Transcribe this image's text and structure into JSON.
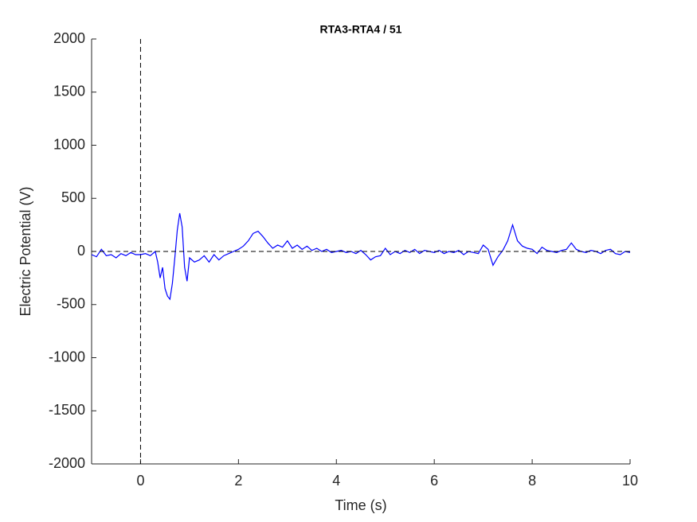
{
  "chart_data": {
    "type": "line",
    "title": "RTA3-RTA4 / 51",
    "xlabel": "Time (s)",
    "ylabel": "Electric Potential (V)",
    "x": [
      -1,
      -0.9,
      -0.8,
      -0.7,
      -0.6,
      -0.5,
      -0.4,
      -0.3,
      -0.2,
      -0.1,
      0,
      0.1,
      0.2,
      0.3,
      0.35,
      0.4,
      0.45,
      0.5,
      0.55,
      0.6,
      0.65,
      0.7,
      0.75,
      0.8,
      0.85,
      0.9,
      0.95,
      1.0,
      1.1,
      1.2,
      1.3,
      1.4,
      1.5,
      1.6,
      1.7,
      1.8,
      1.9,
      2.0,
      2.1,
      2.2,
      2.3,
      2.4,
      2.5,
      2.6,
      2.7,
      2.8,
      2.9,
      3.0,
      3.1,
      3.2,
      3.3,
      3.4,
      3.5,
      3.6,
      3.7,
      3.8,
      3.9,
      4.0,
      4.1,
      4.2,
      4.3,
      4.4,
      4.5,
      4.6,
      4.7,
      4.8,
      4.9,
      5.0,
      5.1,
      5.2,
      5.3,
      5.4,
      5.5,
      5.6,
      5.7,
      5.8,
      5.9,
      6.0,
      6.1,
      6.2,
      6.3,
      6.4,
      6.5,
      6.6,
      6.7,
      6.8,
      6.9,
      7.0,
      7.1,
      7.2,
      7.3,
      7.4,
      7.5,
      7.6,
      7.7,
      7.8,
      7.9,
      8.0,
      8.1,
      8.2,
      8.3,
      8.4,
      8.5,
      8.6,
      8.7,
      8.8,
      8.9,
      9.0,
      9.1,
      9.2,
      9.3,
      9.4,
      9.5,
      9.6,
      9.7,
      9.8,
      9.9,
      10
    ],
    "series": [
      {
        "color": "#0000ff",
        "values": [
          -30,
          -50,
          20,
          -40,
          -30,
          -60,
          -20,
          -40,
          -10,
          -30,
          -30,
          -20,
          -40,
          0,
          -100,
          -250,
          -150,
          -350,
          -420,
          -450,
          -300,
          -60,
          200,
          360,
          230,
          -150,
          -280,
          -60,
          -100,
          -80,
          -40,
          -100,
          -30,
          -80,
          -40,
          -20,
          0,
          20,
          50,
          100,
          170,
          190,
          140,
          80,
          30,
          60,
          40,
          100,
          30,
          60,
          20,
          50,
          10,
          30,
          0,
          20,
          -10,
          0,
          10,
          -10,
          0,
          -20,
          10,
          -30,
          -80,
          -50,
          -40,
          30,
          -30,
          0,
          -20,
          10,
          -10,
          20,
          -20,
          10,
          0,
          -10,
          10,
          -20,
          0,
          -10,
          10,
          -30,
          0,
          -10,
          -20,
          60,
          20,
          -130,
          -50,
          10,
          100,
          250,
          100,
          50,
          30,
          20,
          -20,
          40,
          10,
          0,
          -10,
          10,
          20,
          80,
          20,
          0,
          -10,
          10,
          0,
          -20,
          10,
          20,
          -20,
          -30,
          0,
          -10
        ]
      }
    ],
    "xlim": [
      -1,
      10
    ],
    "xticks": [
      0,
      2,
      4,
      6,
      8,
      10
    ],
    "ylim": [
      -2000,
      2000
    ],
    "yticks": [
      -2000,
      -1500,
      -1000,
      -500,
      0,
      500,
      1000,
      1500,
      2000
    ],
    "vline": 0,
    "hline": 0
  }
}
